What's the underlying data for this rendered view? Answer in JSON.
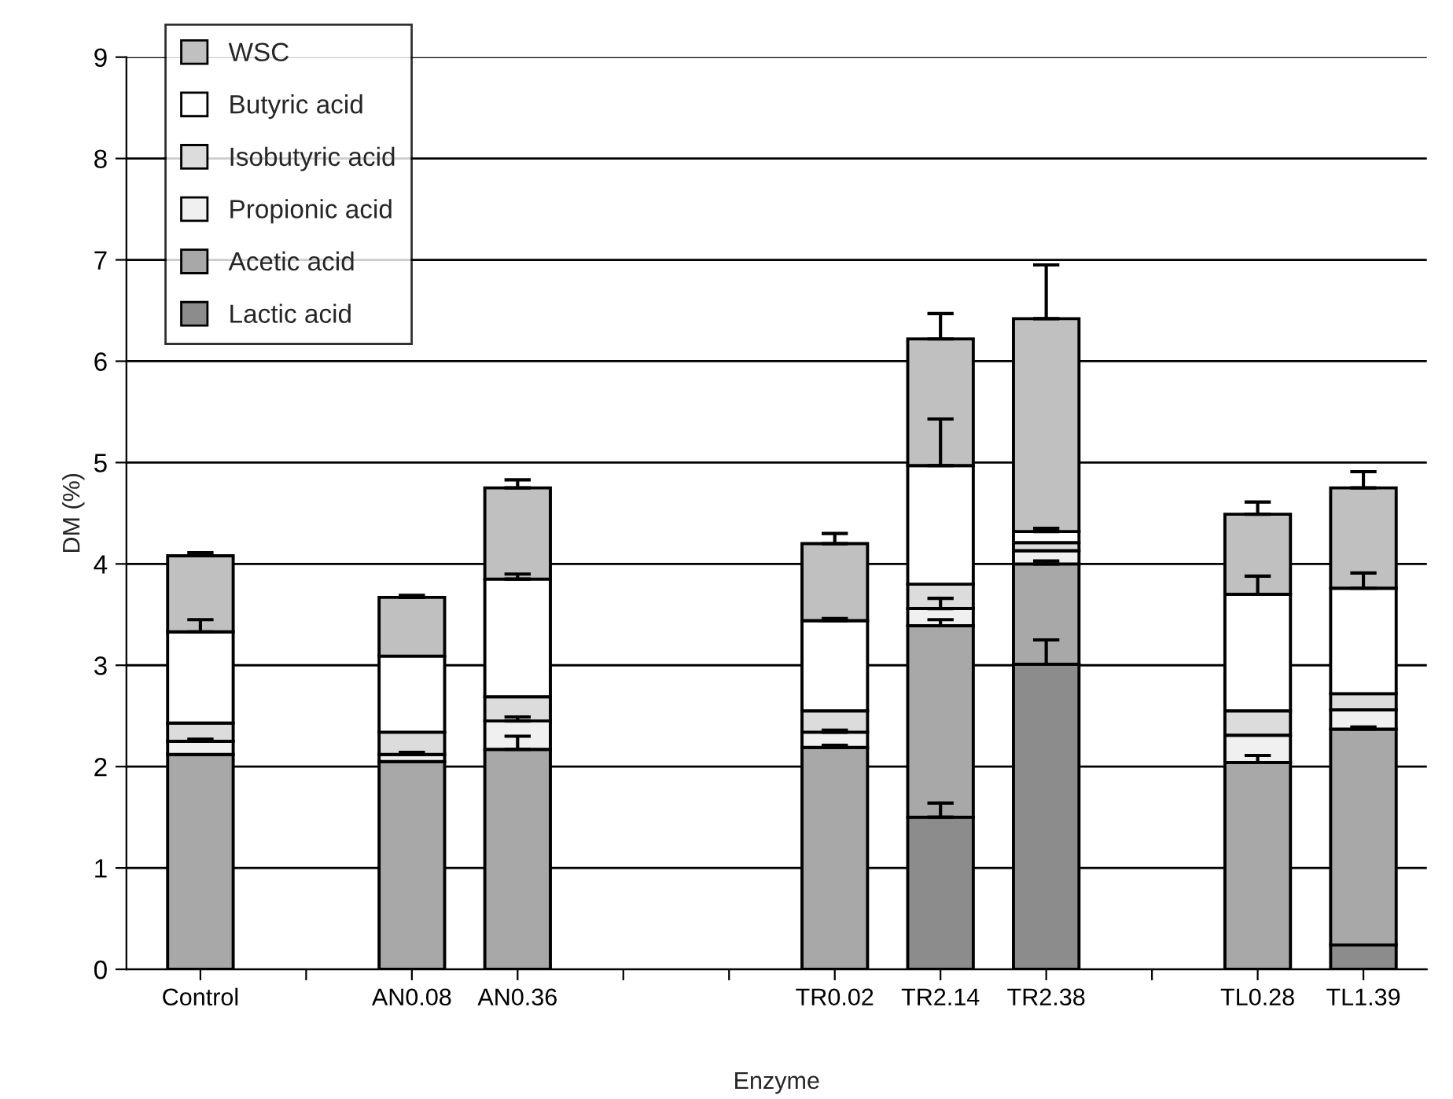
{
  "chart_data": {
    "type": "bar",
    "stacked": true,
    "xlabel": "Enzyme",
    "ylabel": "DM (%)",
    "categories": [
      "Control",
      null,
      "AN0.08",
      "AN0.36",
      null,
      null,
      "TR0.02",
      "TR2.14",
      "TR2.38",
      null,
      "TL0.28",
      "TL1.39"
    ],
    "ylim": [
      0,
      9
    ],
    "yticks": [
      0,
      1,
      2,
      3,
      4,
      5,
      6,
      7,
      8,
      9
    ],
    "grid": "y",
    "legend": "top left",
    "series": [
      {
        "name": "Lactic acid",
        "color": "#8c8c8c",
        "values": [
          null,
          null,
          null,
          null,
          null,
          null,
          null,
          1.5,
          3.01,
          null,
          null,
          0.24
        ],
        "errors": [
          null,
          null,
          null,
          null,
          null,
          null,
          null,
          [
            1.5,
            1.64
          ],
          [
            3.01,
            3.25
          ],
          null,
          null,
          null
        ]
      },
      {
        "name": "Acetic acid",
        "color": "#a8a8a8",
        "values": [
          2.12,
          null,
          2.05,
          2.17,
          null,
          null,
          2.19,
          1.89,
          0.99,
          null,
          2.04,
          2.13
        ],
        "errors": [
          null,
          null,
          null,
          [
            2.17,
            2.3
          ],
          null,
          null,
          [
            2.19,
            2.21
          ],
          [
            3.39,
            3.45
          ],
          [
            4.0,
            4.03
          ],
          null,
          [
            2.04,
            2.11
          ],
          [
            2.37,
            2.39
          ]
        ]
      },
      {
        "name": "Propionic acid",
        "color": "#f0f0f0",
        "values": [
          0.13,
          null,
          0.07,
          0.28,
          null,
          null,
          0.15,
          0.17,
          0.13,
          null,
          0.27,
          0.19
        ],
        "errors": [
          [
            2.25,
            2.27
          ],
          null,
          [
            2.12,
            2.14
          ],
          [
            2.45,
            2.49
          ],
          null,
          null,
          [
            2.34,
            2.36
          ],
          [
            3.56,
            3.66
          ],
          null,
          null,
          null,
          null
        ]
      },
      {
        "name": "Isobutyric acid",
        "color": "#dcdcdc",
        "values": [
          0.18,
          null,
          0.22,
          0.24,
          null,
          null,
          0.21,
          0.24,
          0.08,
          null,
          0.24,
          0.16
        ]
      },
      {
        "name": "Butyric acid",
        "color": "#ffffff",
        "values": [
          0.9,
          null,
          0.75,
          1.16,
          null,
          null,
          0.89,
          1.17,
          0.11,
          null,
          1.15,
          1.04
        ],
        "errors": [
          [
            3.33,
            3.45
          ],
          null,
          null,
          [
            3.85,
            3.9
          ],
          null,
          null,
          [
            3.44,
            3.46
          ],
          [
            4.97,
            5.43
          ],
          [
            4.32,
            4.35
          ],
          null,
          [
            3.7,
            3.88
          ],
          [
            3.76,
            3.91
          ]
        ]
      },
      {
        "name": "WSC",
        "color": "#c0c0c0",
        "values": [
          0.75,
          null,
          0.58,
          0.9,
          null,
          null,
          0.76,
          1.25,
          2.1,
          null,
          0.79,
          0.99
        ],
        "errors": [
          [
            4.08,
            4.11
          ],
          null,
          [
            3.67,
            3.69
          ],
          [
            4.75,
            4.83
          ],
          null,
          null,
          [
            4.2,
            4.3
          ],
          [
            6.22,
            6.47
          ],
          [
            6.42,
            6.95
          ],
          null,
          [
            4.49,
            4.61
          ],
          [
            4.75,
            4.91
          ]
        ]
      }
    ]
  }
}
